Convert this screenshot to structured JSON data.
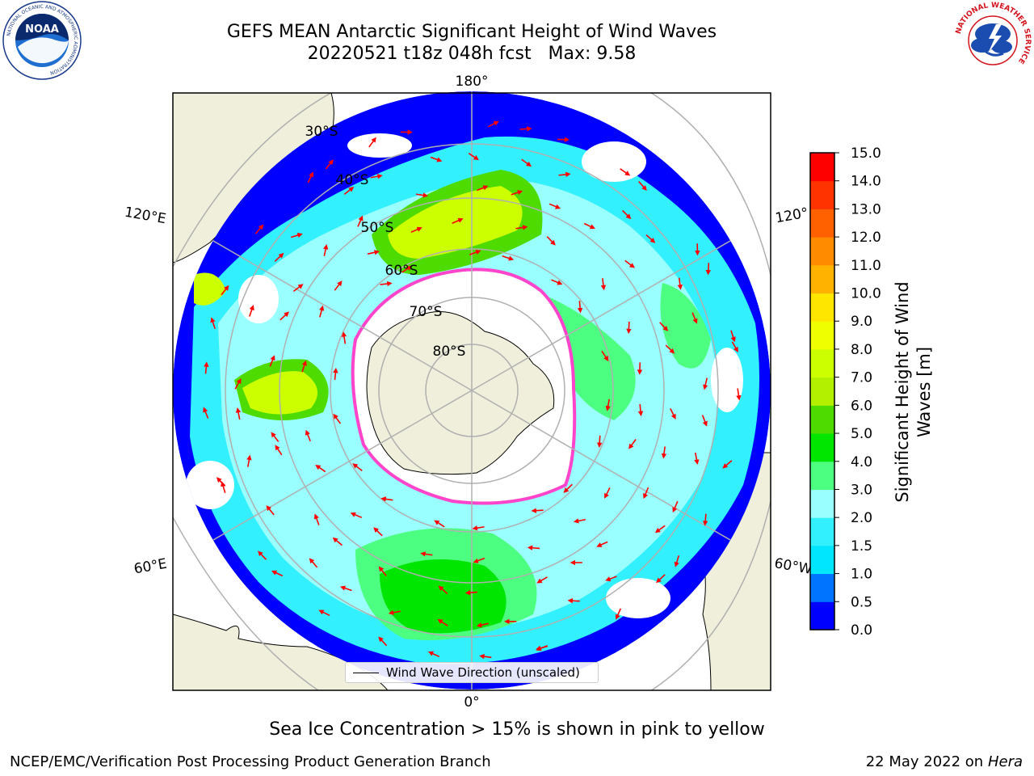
{
  "header": {
    "title_line1": "GEFS MEAN Antarctic Significant Height of Wind Waves",
    "title_line2": "20220521 t18z 048h fcst   Max: 9.58"
  },
  "logos": {
    "left": {
      "name": "NOAA",
      "ring_text": "NATIONAL OCEANIC AND ATMOSPHERIC ADMINISTRATION",
      "bottom_text": "U.S. DEPARTMENT OF COMMERCE"
    },
    "right": {
      "ring_text": "NATIONAL WEATHER SERVICE"
    }
  },
  "map": {
    "projection": "south-polar-stereographic",
    "longitude_labels": {
      "top": "180°",
      "bottom": "0°",
      "upper_left": "120°E",
      "lower_left": "60°E",
      "upper_right": "120°",
      "lower_right": "60°W"
    },
    "latitude_labels": [
      "30°S",
      "40°S",
      "50°S",
      "60°S",
      "70°S",
      "80°S"
    ],
    "colors": {
      "land": "#efefdb",
      "ice_edge": "#ff44cc",
      "arrow": "#ff0000",
      "grid": "#b0b0b0"
    }
  },
  "legend": {
    "label": "Wind Wave Direction (unscaled)"
  },
  "colorbar": {
    "label_line1": "Significant Height of Wind",
    "label_line2": "Waves [m]",
    "ticks": [
      "0.0",
      "0.5",
      "1.0",
      "1.5",
      "2.0",
      "3.0",
      "4.0",
      "5.0",
      "6.0",
      "7.0",
      "8.0",
      "9.0",
      "10.0",
      "11.0",
      "12.0",
      "13.0",
      "14.0",
      "15.0"
    ],
    "colors": [
      "#0000ff",
      "#0073ff",
      "#00e6ff",
      "#33f0ff",
      "#99ffff",
      "#4dff80",
      "#00e600",
      "#4ddb00",
      "#b3f000",
      "#ccff00",
      "#f0ff00",
      "#ffe600",
      "#ffb300",
      "#ff8c00",
      "#ff6000",
      "#ff3300",
      "#ff0000"
    ]
  },
  "chart_data": {
    "type": "heatmap",
    "title": "GEFS MEAN Antarctic Significant Height of Wind Waves",
    "max_value": 9.58,
    "zlabel": "Significant Height of Wind Waves [m]",
    "zlim": [
      0.0,
      15.0
    ]
  },
  "note": "Sea Ice Concentration > 15% is shown in pink to yellow",
  "footer": {
    "left": "NCEP/EMC/Verification Post Processing Product Generation Branch",
    "date": "22 May 2022 on",
    "host": "Hera"
  }
}
